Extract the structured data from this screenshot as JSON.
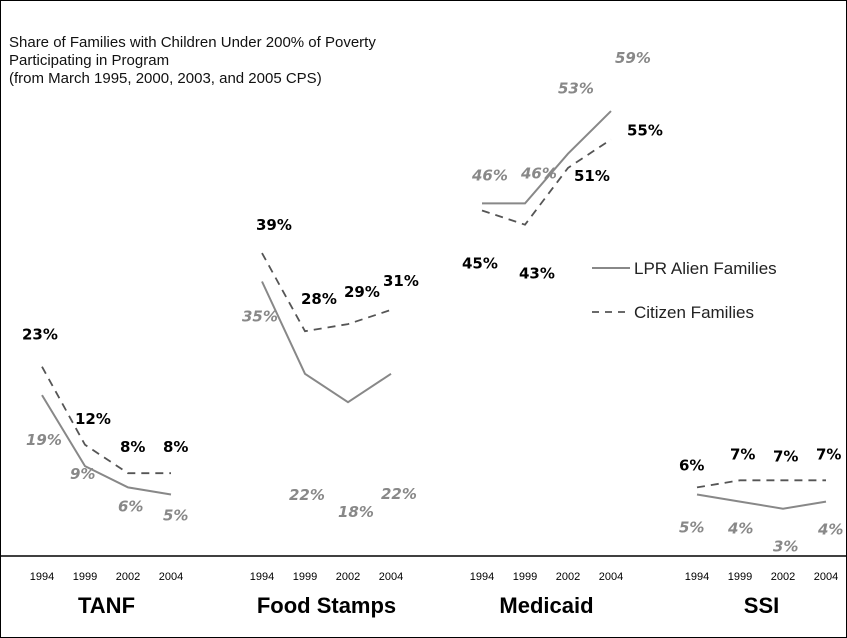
{
  "title_lines": [
    "Share of Families with Children Under 200% of Poverty",
    "Participating in Program",
    "(from March 1995, 2000, 2003, and 2005 CPS)"
  ],
  "chart_data": {
    "type": "line",
    "title": "Share of Families with Children Under 200% of Poverty Participating in Program (from March 1995, 2000, 2003, and 2005 CPS)",
    "x": [
      "1994",
      "1999",
      "2002",
      "2004"
    ],
    "legend": {
      "placement": "right",
      "entries": [
        {
          "name": "LPR Alien Families",
          "style": "solid",
          "color": "#888888"
        },
        {
          "name": "Citizen Families",
          "style": "dashed",
          "color": "#555555"
        }
      ]
    },
    "panels": [
      {
        "program": "TANF",
        "series": [
          {
            "name": "LPR Alien Families",
            "values": [
              19,
              9,
              6,
              5
            ],
            "labels": [
              "19%",
              "9%",
              "6%",
              "5%"
            ]
          },
          {
            "name": "Citizen Families",
            "values": [
              23,
              12,
              8,
              8
            ],
            "labels": [
              "23%",
              "12%",
              "8%",
              "8%"
            ]
          }
        ]
      },
      {
        "program": "Food Stamps",
        "series": [
          {
            "name": "LPR Alien Families",
            "values": [
              35,
              22,
              18,
              22
            ],
            "labels": [
              "35%",
              "22%",
              "18%",
              "22%"
            ]
          },
          {
            "name": "Citizen Families",
            "values": [
              39,
              28,
              29,
              31
            ],
            "labels": [
              "39%",
              "28%",
              "29%",
              "31%"
            ]
          }
        ]
      },
      {
        "program": "Medicaid",
        "series": [
          {
            "name": "LPR Alien Families",
            "values": [
              46,
              46,
              53,
              59
            ],
            "labels": [
              "46%",
              "46%",
              "53%",
              "59%"
            ]
          },
          {
            "name": "Citizen Families",
            "values": [
              45,
              43,
              51,
              55
            ],
            "labels": [
              "45%",
              "43%",
              "51%",
              "55%"
            ]
          }
        ]
      },
      {
        "program": "SSI",
        "series": [
          {
            "name": "LPR Alien Families",
            "values": [
              5,
              4,
              3,
              4
            ],
            "labels": [
              "5%",
              "4%",
              "3%",
              "4%"
            ]
          },
          {
            "name": "Citizen Families",
            "values": [
              6,
              7,
              7,
              7
            ],
            "labels": [
              "6%",
              "7%",
              "7%",
              "7%"
            ]
          }
        ]
      }
    ],
    "grid": false,
    "colors": {
      "lpr": "#888888",
      "citizen": "#000000",
      "citizen_line": "#555555"
    }
  }
}
